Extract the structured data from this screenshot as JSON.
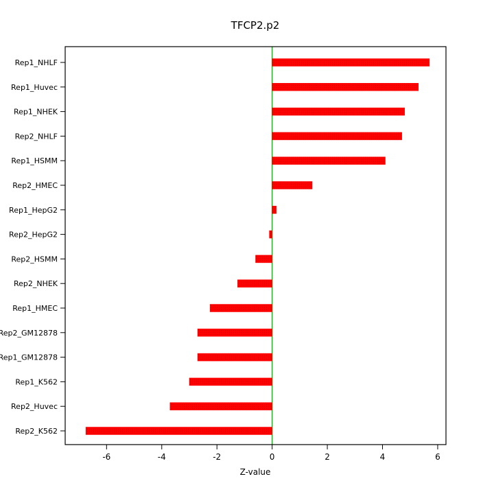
{
  "chart_data": {
    "type": "bar",
    "orientation": "horizontal",
    "title": "TFCP2.p2",
    "xlabel": "Z-value",
    "ylabel": "",
    "categories": [
      "Rep1_NHLF",
      "Rep1_Huvec",
      "Rep1_NHEK",
      "Rep2_NHLF",
      "Rep1_HSMM",
      "Rep2_HMEC",
      "Rep1_HepG2",
      "Rep2_HepG2",
      "Rep2_HSMM",
      "Rep2_NHEK",
      "Rep1_HMEC",
      "Rep2_GM12878",
      "Rep1_GM12878",
      "Rep1_K562",
      "Rep2_Huvec",
      "Rep2_K562"
    ],
    "values": [
      5.7,
      5.3,
      4.8,
      4.7,
      4.1,
      1.45,
      0.15,
      -0.1,
      -0.6,
      -1.25,
      -2.25,
      -2.7,
      -2.7,
      -3.0,
      -3.7,
      -6.75
    ],
    "xlim": [
      -7.5,
      6.3
    ],
    "xticks": [
      -6,
      -4,
      -2,
      0,
      2,
      4,
      6
    ],
    "grid": false,
    "legend": null,
    "bar_color": "#ff0000",
    "bar_dot_color": "#d40000",
    "zero_line_color": "#00bb00",
    "axis_color": "#000000",
    "background_color": "#ffffff"
  }
}
